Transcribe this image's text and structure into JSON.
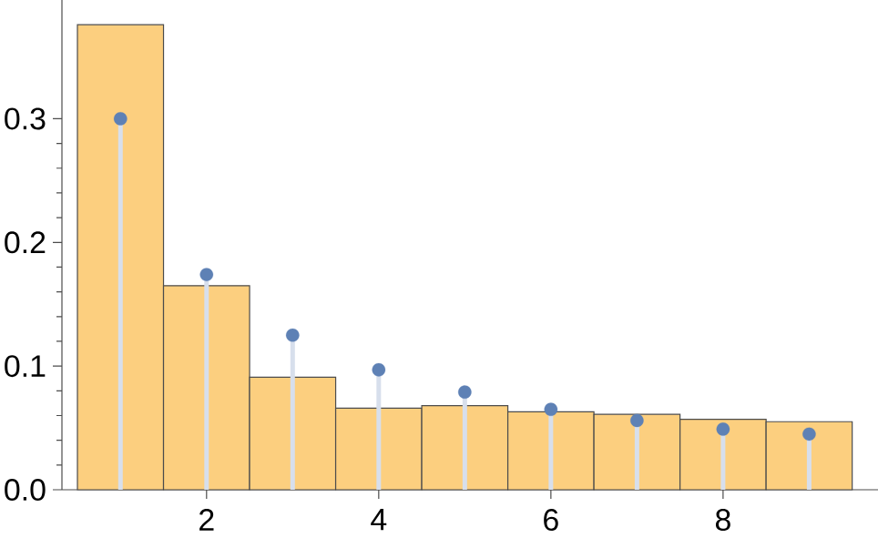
{
  "chart_data": {
    "type": "histogram",
    "bins": [
      0.5,
      1.5,
      2.5,
      3.5,
      4.5,
      5.5,
      6.5,
      7.5,
      8.5,
      9.5
    ],
    "values": [
      0.376,
      0.165,
      0.091,
      0.066,
      0.068,
      0.063,
      0.061,
      0.057,
      0.055
    ],
    "color": "#fccf7f",
    "series": [
      {
        "type": "lollipop",
        "x": [
          1,
          2,
          3,
          4,
          5,
          6,
          7,
          8,
          9
        ],
        "values": [
          0.3,
          0.174,
          0.125,
          0.097,
          0.079,
          0.065,
          0.056,
          0.049,
          0.045
        ],
        "color": "#5e81b5"
      }
    ],
    "xlim": [
      0.32,
      9.8
    ],
    "ylim": [
      0,
      0.396
    ],
    "xticks": [
      2,
      4,
      6,
      8
    ],
    "yticks": [
      {
        "value": 0,
        "label": "0.0"
      },
      {
        "value": 0.1,
        "label": "0.1"
      },
      {
        "value": 0.2,
        "label": "0.2"
      },
      {
        "value": 0.3,
        "label": "0.3"
      }
    ],
    "grid": false
  }
}
